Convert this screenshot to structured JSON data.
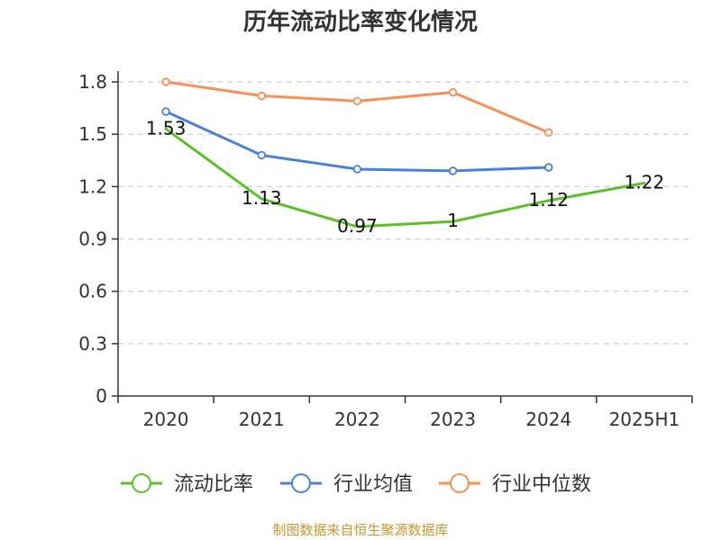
{
  "chart_data": {
    "type": "line",
    "title": "历年流动比率变化情况",
    "categories": [
      "2020",
      "2021",
      "2022",
      "2023",
      "2024",
      "2025H1"
    ],
    "yticks": [
      "0",
      "0.3",
      "0.6",
      "0.9",
      "1.2",
      "1.5",
      "1.8"
    ],
    "ylim": [
      0,
      1.8
    ],
    "grid": true,
    "legend_position": "bottom",
    "series": [
      {
        "name": "流动比率",
        "color": "#5cc02a",
        "values": [
          1.53,
          1.13,
          0.97,
          1.0,
          1.12,
          1.22
        ],
        "labels": [
          "1.53",
          "1.13",
          "0.97",
          "1",
          "1.12",
          "1.22"
        ],
        "markers": false,
        "show_labels": true
      },
      {
        "name": "行业均值",
        "color": "#4a7fdc",
        "values": [
          1.63,
          1.38,
          1.3,
          1.29,
          1.31,
          null
        ],
        "markers": true,
        "show_labels": false
      },
      {
        "name": "行业中位数",
        "color": "#f79057",
        "values": [
          1.8,
          1.72,
          1.69,
          1.74,
          1.51,
          null
        ],
        "markers": true,
        "show_labels": false
      }
    ]
  },
  "footer": {
    "source": "制图数据来自恒生聚源数据库"
  }
}
